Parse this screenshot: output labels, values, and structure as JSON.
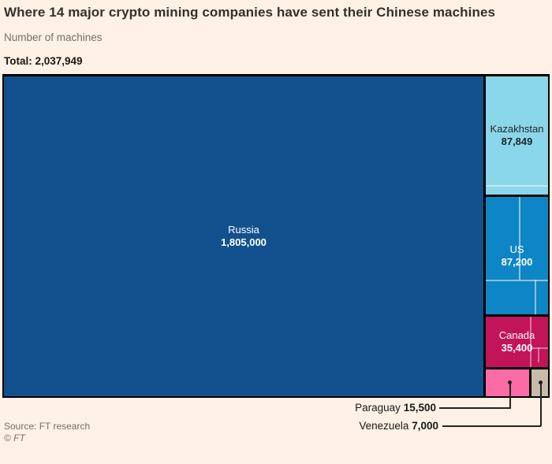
{
  "chart_data": {
    "type": "treemap",
    "title": "Where 14 major crypto mining companies have sent their Chinese machines",
    "subtitle": "Number of machines",
    "total_label": "Total: 2,037,949",
    "total": 2037949,
    "source": "Source: FT research",
    "copyright": "© FT",
    "palette": {
      "background": "#FFF1E5",
      "block_border": "#000000",
      "leader_line": "#26231F",
      "title_text": "#33302E",
      "muted_text": "#756E66"
    },
    "nodes": [
      {
        "name": "Russia",
        "value": 1805000,
        "display": "1,805,000",
        "color": "#12518E",
        "text_color": "#FFFFFF",
        "label_placement": "inside"
      },
      {
        "name": "Kazakhstan",
        "value": 87849,
        "display": "87,849",
        "color": "#8BD7EA",
        "text_color": "#20262B",
        "label_placement": "inside"
      },
      {
        "name": "US",
        "value": 87200,
        "display": "87,200",
        "color": "#0E86C6",
        "text_color": "#FFFFFF",
        "label_placement": "inside"
      },
      {
        "name": "Canada",
        "value": 35400,
        "display": "35,400",
        "color": "#C21459",
        "text_color": "#FFFFFF",
        "label_placement": "inside"
      },
      {
        "name": "Paraguay",
        "value": 15500,
        "display": "15,500",
        "color": "#FB6BA6",
        "text_color": "#1A1817",
        "label_placement": "outside"
      },
      {
        "name": "Venezuela",
        "value": 7000,
        "display": "7,000",
        "color": "#C8BBAA",
        "text_color": "#1A1817",
        "label_placement": "outside"
      }
    ]
  }
}
